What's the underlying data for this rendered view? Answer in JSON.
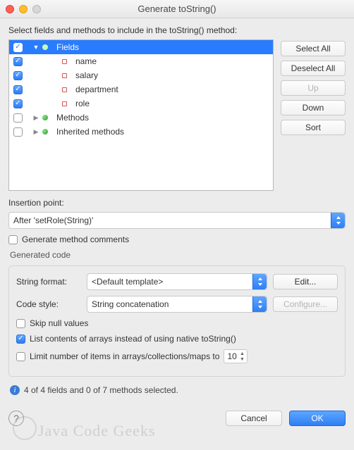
{
  "window": {
    "title": "Generate toString()"
  },
  "colors": {
    "selection": "#2a7cff",
    "button_primary": "#2d7ff4",
    "bg": "#ececec",
    "border": "#c9c9c9"
  },
  "instruction": "Select fields and methods to include in the toString() method:",
  "tree": {
    "items": [
      {
        "label": "Fields",
        "checked": true,
        "indent": 0,
        "expand": "down",
        "icon": "class",
        "selected": true
      },
      {
        "label": "name",
        "checked": true,
        "indent": 2,
        "expand": "none",
        "icon": "field",
        "selected": false
      },
      {
        "label": "salary",
        "checked": true,
        "indent": 2,
        "expand": "none",
        "icon": "field",
        "selected": false
      },
      {
        "label": "department",
        "checked": true,
        "indent": 2,
        "expand": "none",
        "icon": "field",
        "selected": false
      },
      {
        "label": "role",
        "checked": true,
        "indent": 2,
        "expand": "none",
        "icon": "field",
        "selected": false
      },
      {
        "label": "Methods",
        "checked": false,
        "indent": 0,
        "expand": "right",
        "icon": "ball",
        "selected": false
      },
      {
        "label": "Inherited methods",
        "checked": false,
        "indent": 0,
        "expand": "right",
        "icon": "ball",
        "selected": false
      }
    ]
  },
  "side_buttons": {
    "select_all": "Select All",
    "deselect_all": "Deselect All",
    "up": "Up",
    "down": "Down",
    "sort": "Sort"
  },
  "insertion_point": {
    "label": "Insertion point:",
    "value": "After 'setRole(String)'"
  },
  "generate_comments": {
    "label": "Generate method comments",
    "checked": false
  },
  "generated_code": {
    "legend": "Generated code",
    "string_format": {
      "label": "String format:",
      "value": "<Default template>",
      "edit": "Edit..."
    },
    "code_style": {
      "label": "Code style:",
      "value": "String concatenation",
      "configure": "Configure..."
    },
    "skip_null": {
      "label": "Skip null values",
      "checked": false
    },
    "list_arrays": {
      "label": "List contents of arrays instead of using native toString()",
      "checked": true
    },
    "limit_items": {
      "label": "Limit number of items in arrays/collections/maps to",
      "checked": false,
      "value": "10"
    }
  },
  "status": "4 of 4 fields and 0 of 7 methods selected.",
  "footer": {
    "cancel": "Cancel",
    "ok": "OK"
  },
  "watermark": "Java Code Geeks"
}
